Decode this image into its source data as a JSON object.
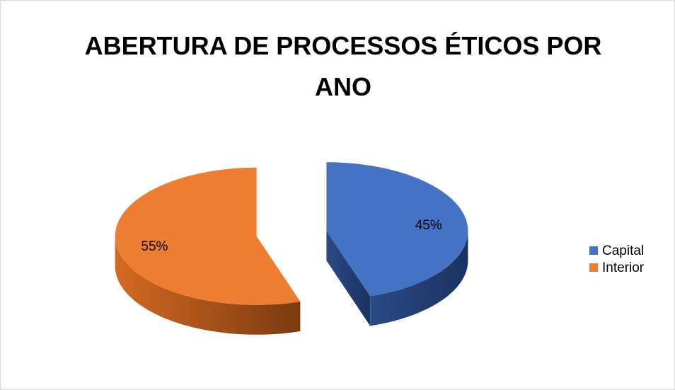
{
  "chart_data": {
    "type": "pie",
    "title": "ABERTURA DE PROCESSOS ÉTICOS POR ANO",
    "categories": [
      "Capital",
      "Interior"
    ],
    "values": [
      45,
      55
    ],
    "value_labels": [
      "45%",
      "55%"
    ],
    "colors": [
      "#4472c4",
      "#ed7d31"
    ],
    "legend": "right"
  }
}
